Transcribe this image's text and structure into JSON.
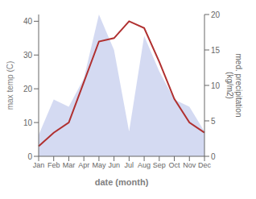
{
  "chart_data": {
    "type": "line",
    "categories": [
      "Jan",
      "Feb",
      "Mar",
      "Apr",
      "May",
      "Jun",
      "Jul",
      "Aug",
      "Sep",
      "Oct",
      "Nov",
      "Dec"
    ],
    "series": [
      {
        "type": "area",
        "axis": "y2",
        "color": "#b0bce8",
        "values": [
          3.0,
          8.0,
          7.0,
          11.0,
          20.0,
          15.0,
          3.5,
          17.0,
          12.0,
          8.0,
          7.0,
          3.5
        ]
      },
      {
        "type": "line",
        "color": "#b03030",
        "values": [
          3.0,
          7.0,
          10.0,
          22.0,
          34.0,
          35.0,
          40.0,
          38.0,
          28.0,
          17.0,
          10.0,
          7.0
        ]
      }
    ],
    "xlabel": "date (month)",
    "ylabel": "max temp (C)",
    "y2label": "med. precipitation\n(kg/m2)",
    "ylim": [
      0,
      42
    ],
    "yticks": [
      0,
      10,
      20,
      30,
      40
    ],
    "y2lim": [
      0,
      20
    ],
    "y2ticks": [
      0,
      5,
      10,
      15,
      20
    ],
    "grid": false
  }
}
